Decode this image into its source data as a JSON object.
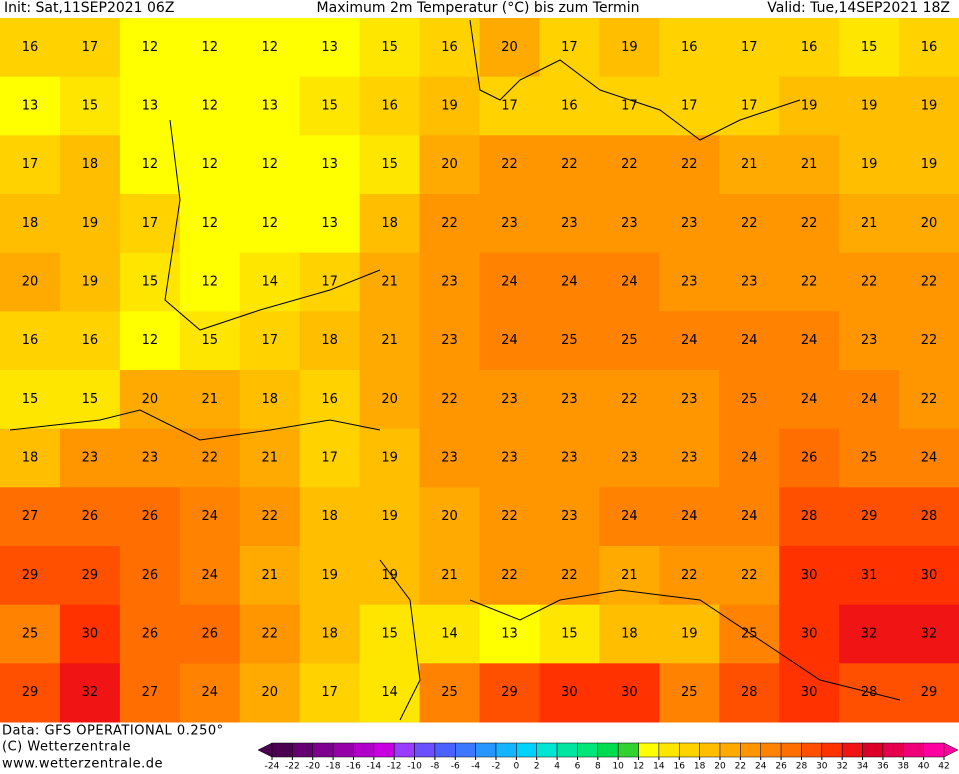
{
  "header": {
    "init": "Init: Sat,11SEP2021 06Z",
    "title": "Maximum 2m Temperatur (°C) bis zum Termin",
    "valid": "Valid: Tue,14SEP2021 18Z"
  },
  "footer": {
    "data": "Data: GFS OPERATIONAL 0.250°",
    "copyright": "(C) Wetterzentrale",
    "url": "www.wetterzentrale.de"
  },
  "colorbar": {
    "ticks": [
      -24,
      -22,
      -20,
      -18,
      -16,
      -14,
      -12,
      -10,
      -8,
      -6,
      -4,
      -2,
      0,
      2,
      4,
      6,
      8,
      10,
      12,
      14,
      16,
      18,
      20,
      22,
      24,
      26,
      28,
      30,
      32,
      34,
      36,
      38,
      40,
      42
    ],
    "colors": [
      "#4b0050",
      "#640070",
      "#7d0090",
      "#9600a8",
      "#b000c8",
      "#c800e0",
      "#9a3cff",
      "#6a50ff",
      "#4a60ff",
      "#3c78ff",
      "#2896ff",
      "#14b4ff",
      "#00d2ff",
      "#00e6d2",
      "#00e6a0",
      "#00e678",
      "#00dc50",
      "#32d232",
      "#ffff00",
      "#ffe600",
      "#ffd200",
      "#ffbe00",
      "#ffaa00",
      "#ff9600",
      "#ff8200",
      "#ff6e00",
      "#ff5000",
      "#ff3200",
      "#f01414",
      "#dc0028",
      "#e6004b",
      "#f00078",
      "#ff00a0"
    ]
  },
  "temperature_grid": [
    [
      16,
      17,
      12,
      12,
      12,
      13,
      15,
      16,
      20,
      17,
      19,
      16,
      17,
      16,
      15,
      16
    ],
    [
      13,
      15,
      13,
      12,
      13,
      15,
      16,
      19,
      17,
      16,
      17,
      17,
      17,
      19,
      19,
      19
    ],
    [
      17,
      18,
      12,
      12,
      12,
      13,
      15,
      20,
      22,
      22,
      22,
      22,
      21,
      21,
      19,
      19
    ],
    [
      18,
      19,
      17,
      12,
      12,
      13,
      18,
      22,
      23,
      23,
      23,
      23,
      22,
      22,
      21,
      20
    ],
    [
      20,
      19,
      15,
      12,
      14,
      17,
      21,
      23,
      24,
      24,
      24,
      23,
      23,
      22,
      22,
      22
    ],
    [
      16,
      16,
      12,
      15,
      17,
      18,
      21,
      23,
      24,
      25,
      25,
      24,
      24,
      24,
      23,
      22
    ],
    [
      15,
      15,
      20,
      21,
      18,
      16,
      20,
      22,
      23,
      23,
      22,
      23,
      25,
      24,
      24,
      22
    ],
    [
      18,
      23,
      23,
      22,
      21,
      17,
      19,
      23,
      23,
      23,
      23,
      23,
      24,
      26,
      25,
      24
    ],
    [
      27,
      26,
      26,
      24,
      22,
      18,
      19,
      20,
      22,
      23,
      24,
      24,
      24,
      28,
      29,
      28
    ],
    [
      29,
      29,
      26,
      24,
      21,
      19,
      19,
      21,
      22,
      22,
      21,
      22,
      22,
      30,
      31,
      30
    ],
    [
      25,
      30,
      26,
      26,
      22,
      18,
      15,
      14,
      13,
      15,
      18,
      19,
      25,
      30,
      32,
      32
    ],
    [
      29,
      32,
      27,
      24,
      20,
      17,
      14,
      25,
      29,
      30,
      30,
      25,
      28,
      30,
      28,
      29
    ]
  ]
}
